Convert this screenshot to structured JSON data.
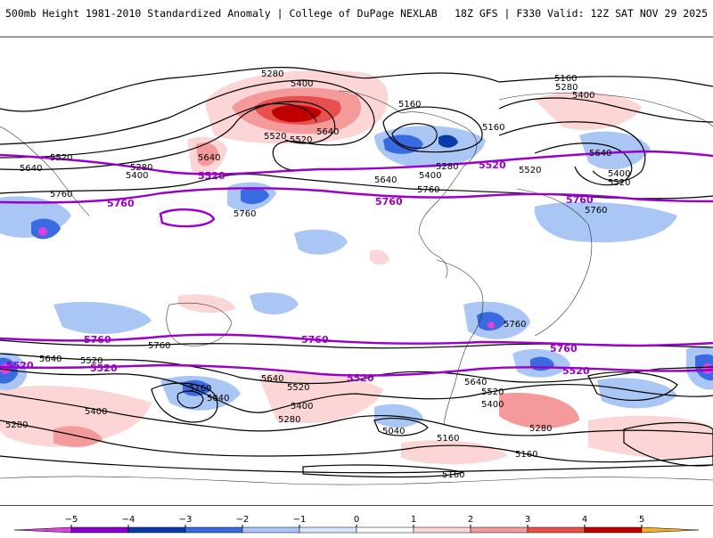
{
  "header": {
    "title": "500mb Height 1981-2010 Standardized Anomaly | College of DuPage NEXLAB",
    "run_info": "18Z GFS | F330 Valid: 12Z SAT NOV 29 2025"
  },
  "contour_labels": {
    "black": [
      "5280",
      "5400",
      "5160",
      "5280",
      "5400",
      "5160",
      "5520",
      "5520",
      "5640",
      "5160",
      "5280",
      "5400",
      "5640",
      "5760",
      "5760",
      "5640",
      "5400",
      "5280",
      "5520",
      "5640",
      "5760",
      "5520",
      "5640",
      "5400",
      "5520",
      "5760",
      "5760",
      "5760",
      "5640",
      "5520",
      "5640",
      "5160",
      "5040",
      "5520",
      "5400",
      "5280",
      "5040",
      "5160",
      "5640",
      "5520",
      "5400",
      "5280",
      "5160",
      "5280",
      "5400",
      "5160"
    ],
    "purple": [
      "5520",
      "5760",
      "5760",
      "5520",
      "5760",
      "5760",
      "5520",
      "5520",
      "5760",
      "5520",
      "5520",
      "5760"
    ]
  },
  "colorbar": {
    "ticks": [
      "−5",
      "−4",
      "−3",
      "−2",
      "−1",
      "0",
      "1",
      "2",
      "3",
      "4",
      "5"
    ],
    "colors": [
      "#e040e0",
      "#8a00c8",
      "#0a3aa8",
      "#3a6ae0",
      "#a9c6f5",
      "#d8e6fb",
      "#ffffff",
      "#fcd6d6",
      "#f59a9a",
      "#e85050",
      "#c00000",
      "#f5b02a"
    ]
  }
}
